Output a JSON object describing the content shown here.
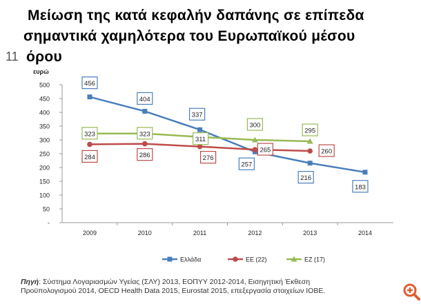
{
  "title_lines": [
    "Μείωση της κατά κεφαλήν δαπάνης σε επίπεδα",
    "σημαντικά χαμηλότερα του Ευρωπαϊκού μέσου",
    "όρου"
  ],
  "slide_number": "11",
  "chart_data": {
    "type": "line",
    "ylabel": "ευρώ",
    "categories": [
      "2009",
      "2010",
      "2011",
      "2012",
      "2013",
      "2014"
    ],
    "ylim": [
      0,
      500
    ],
    "yticks": [
      "-",
      "50",
      "100",
      "150",
      "200",
      "250",
      "300",
      "350",
      "400",
      "450",
      "500"
    ],
    "legend_position": "bottom",
    "series": [
      {
        "name": "Ελλάδα",
        "color": "#4a7ebb",
        "marker": "square",
        "values": [
          456,
          404,
          337,
          257,
          216,
          183
        ]
      },
      {
        "name": "ΕΕ (22)",
        "color": "#be4b48",
        "marker": "circle",
        "values": [
          284,
          286,
          276,
          265,
          260,
          null
        ]
      },
      {
        "name": "ΕΖ (17)",
        "color": "#98b954",
        "marker": "triangle",
        "values": [
          323,
          323,
          311,
          300,
          295,
          null
        ]
      }
    ]
  },
  "source": {
    "label": "Πηγή",
    "text": ": Σύστημα Λογαριασμών Υγείας (ΣΛΥ) 2013, ΕΟΠΥΥ 2012-2014, Εισηγητική Έκθεση",
    "text2": "Προϋπολογισμού 2014, OECD Health Data 2015, Eurostat 2015, επεξεργασία στοιχείων ΙΟΒΕ."
  },
  "icons": {
    "zoom": "zoom-in-icon",
    "zoom_color": "#e05a2b"
  }
}
